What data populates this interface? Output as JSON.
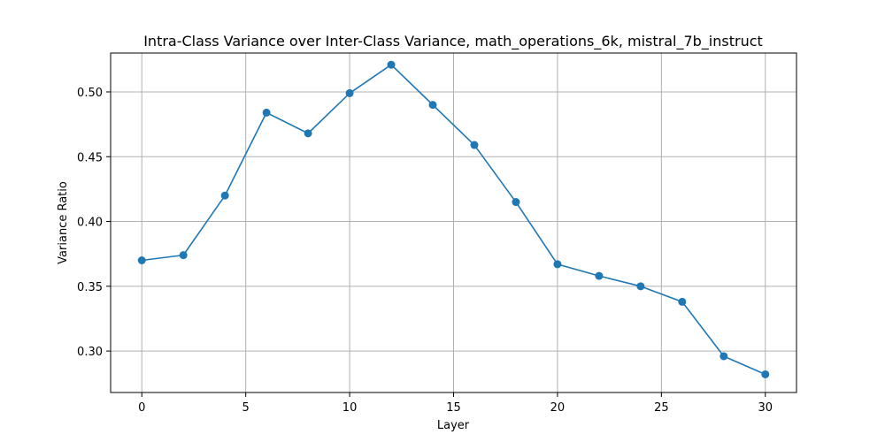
{
  "chart_data": {
    "type": "line",
    "title": "Intra-Class Variance over Inter-Class Variance, math_operations_6k, mistral_7b_instruct",
    "xlabel": "Layer",
    "ylabel": "Variance Ratio",
    "xlim": [
      -1.5,
      31.5
    ],
    "ylim": [
      0.268,
      0.53
    ],
    "xticks": [
      0,
      5,
      10,
      15,
      20,
      25,
      30
    ],
    "yticks": [
      0.3,
      0.35,
      0.4,
      0.45,
      0.5
    ],
    "ytick_labels": [
      "0.30",
      "0.35",
      "0.40",
      "0.45",
      "0.50"
    ],
    "grid": true,
    "legend": "none",
    "series": [
      {
        "color": "#1f77b4",
        "marker": "circle",
        "x": [
          0,
          2,
          4,
          6,
          8,
          10,
          12,
          14,
          16,
          18,
          20,
          22,
          24,
          26,
          28,
          30
        ],
        "y": [
          0.37,
          0.374,
          0.42,
          0.484,
          0.468,
          0.499,
          0.521,
          0.49,
          0.459,
          0.415,
          0.367,
          0.358,
          0.35,
          0.338,
          0.296,
          0.282
        ]
      }
    ]
  }
}
